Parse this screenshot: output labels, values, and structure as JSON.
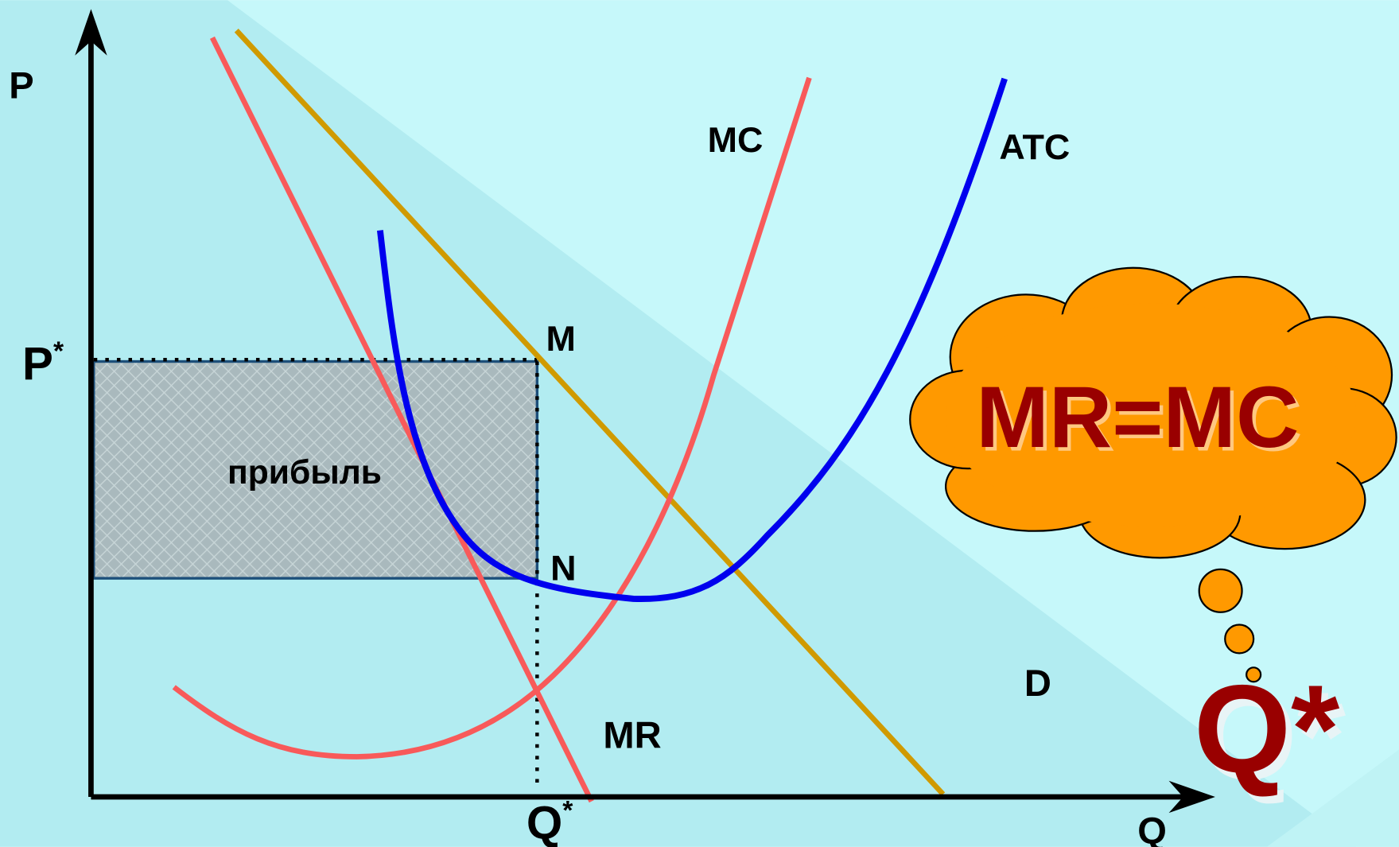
{
  "axes": {
    "y_label": "P",
    "x_label": "Q"
  },
  "price_label": {
    "base": "P",
    "sup": "*"
  },
  "quantity_label": {
    "base": "Q",
    "sup": "*"
  },
  "points": {
    "m": "M",
    "n": "N"
  },
  "curves": {
    "mc": "MC",
    "atc": "ATC",
    "mr": "MR",
    "d": "D"
  },
  "area_label": "прибыль",
  "thought": {
    "rule": "MR=MC",
    "result": "Q*"
  }
}
